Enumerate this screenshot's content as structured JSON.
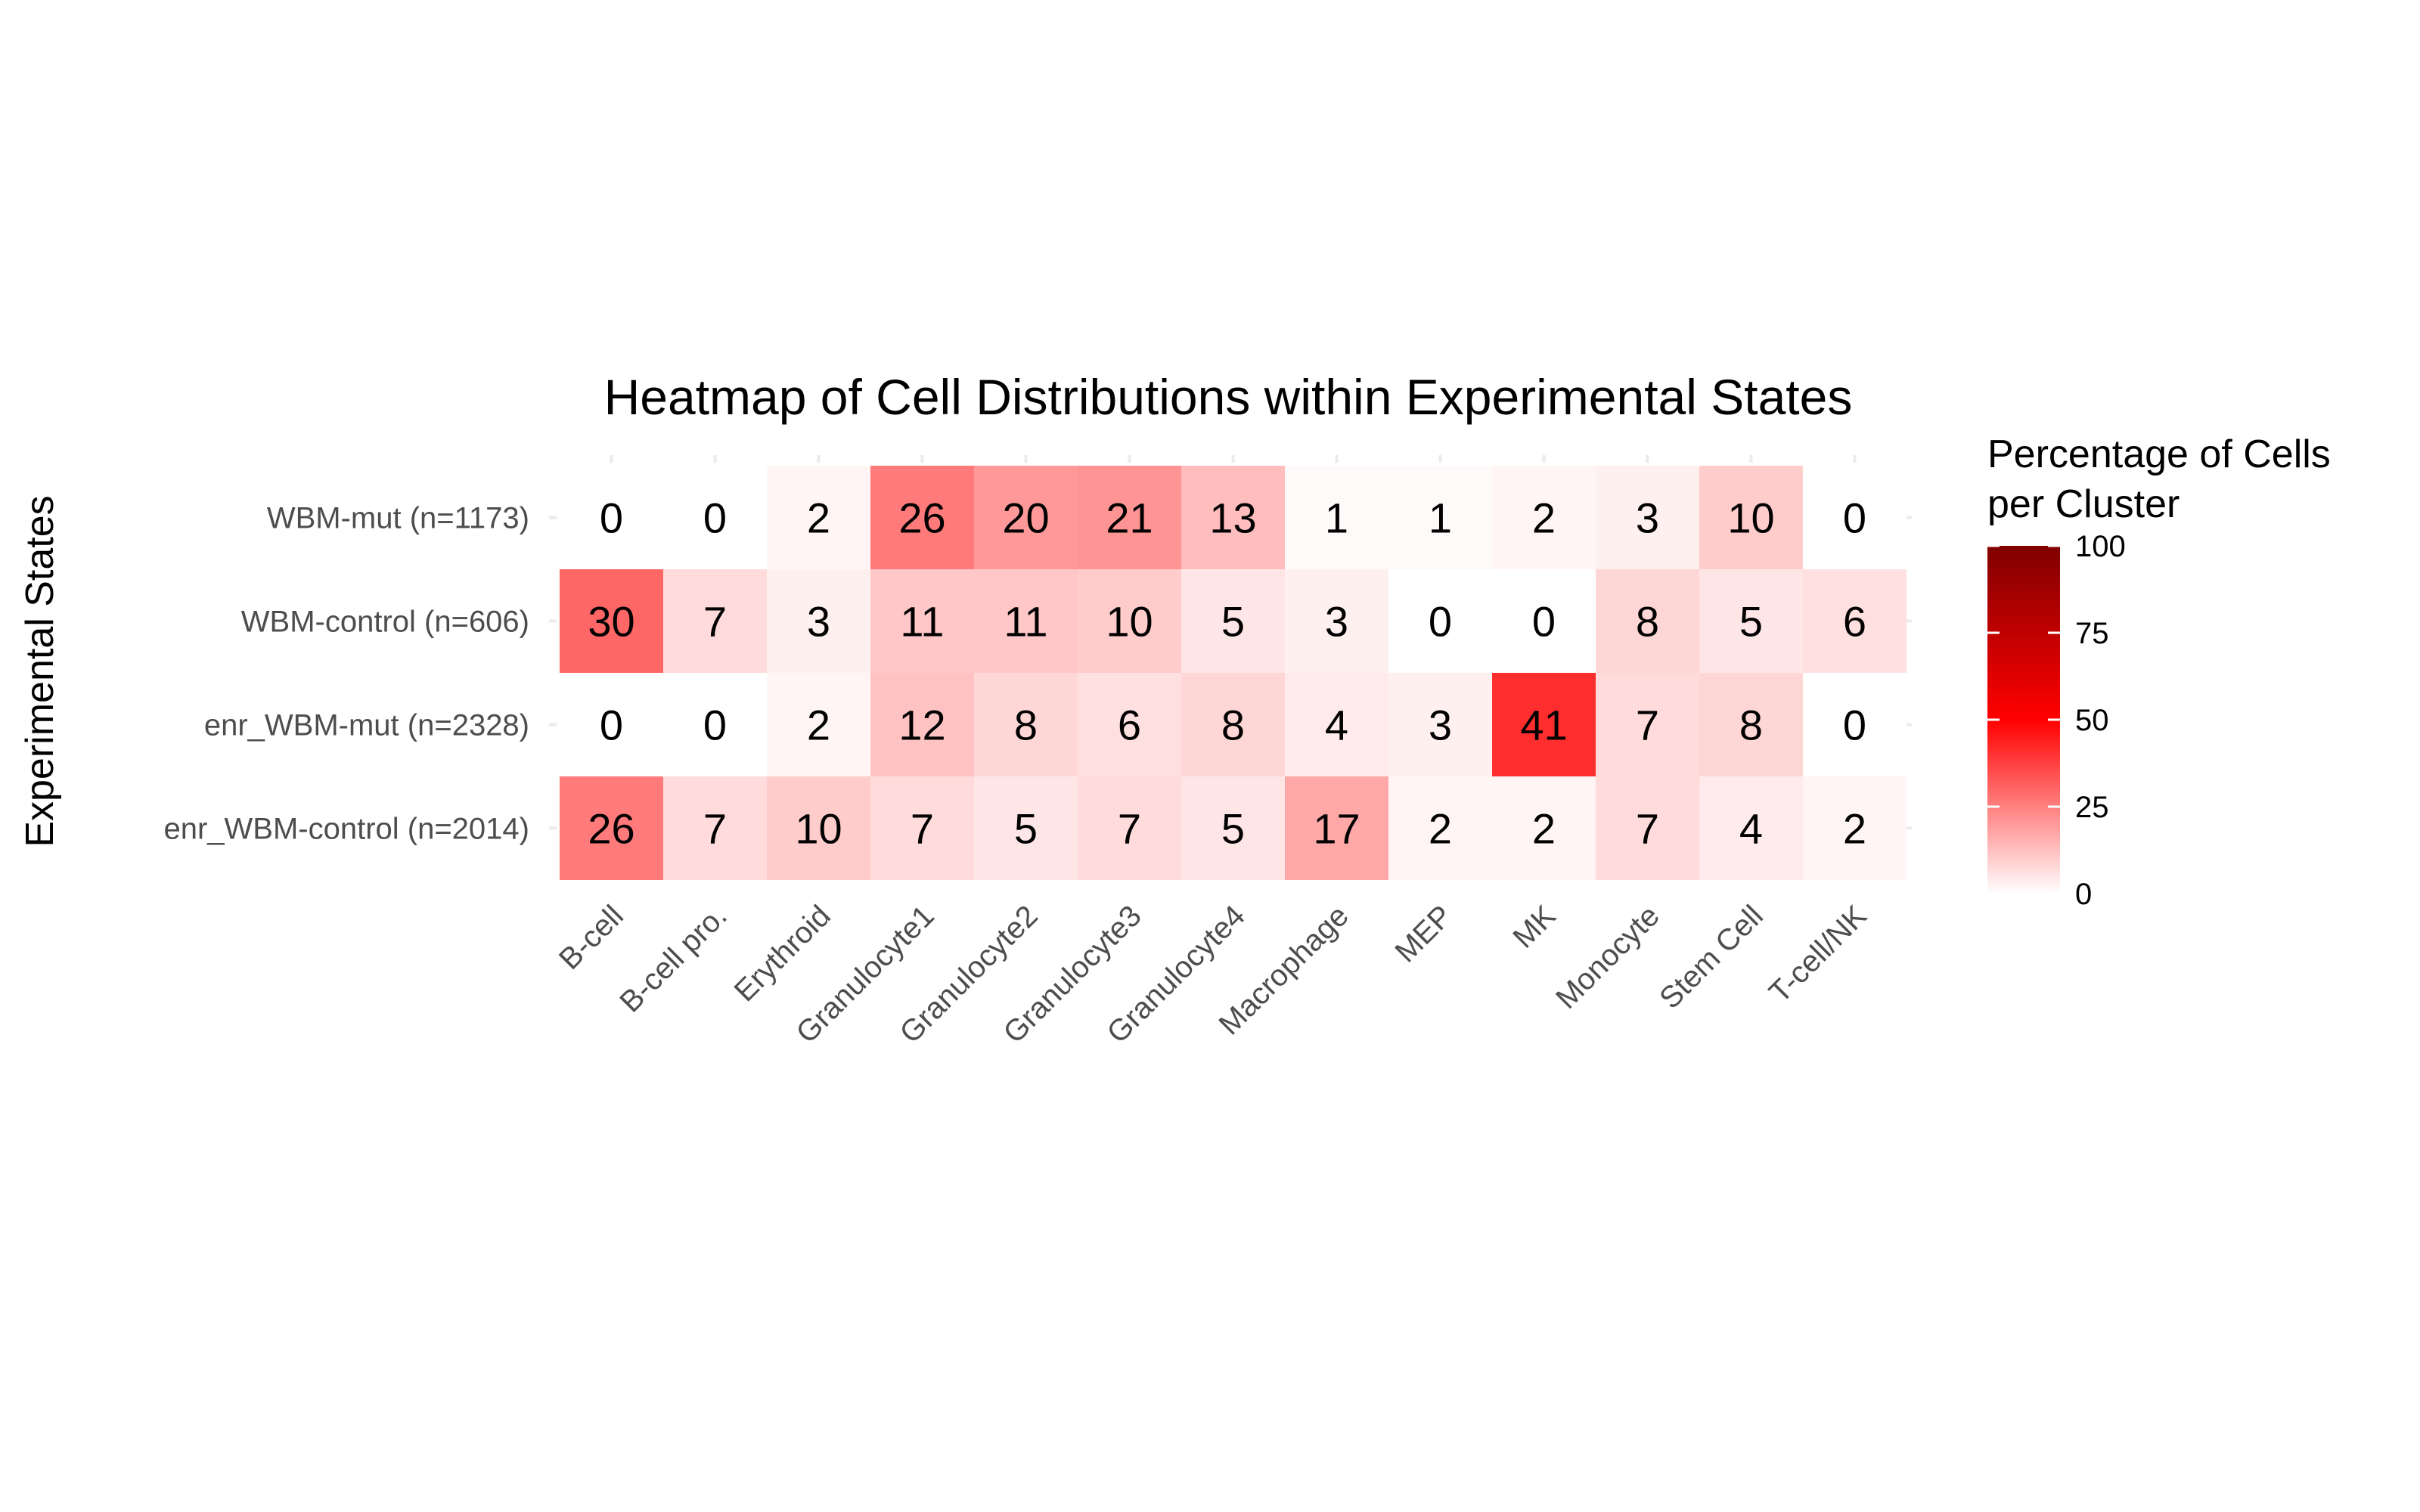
{
  "chart_data": {
    "type": "heatmap",
    "title": "Heatmap of Cell Distributions within Experimental States",
    "xlabel": "",
    "ylabel": "Experimental States",
    "x": [
      "B-cell",
      "B-cell pro.",
      "Erythroid",
      "Granulocyte1",
      "Granulocyte2",
      "Granulocyte3",
      "Granulocyte4",
      "Macrophage",
      "MEP",
      "MK",
      "Monocyte",
      "Stem Cell",
      "T-cell/NK"
    ],
    "y": [
      "WBM-mut (n=1173)",
      "WBM-control (n=606)",
      "enr_WBM-mut (n=2328)",
      "enr_WBM-control (n=2014)"
    ],
    "values": [
      [
        0,
        0,
        2,
        26,
        20,
        21,
        13,
        1,
        1,
        2,
        3,
        10,
        0
      ],
      [
        30,
        7,
        3,
        11,
        11,
        10,
        5,
        3,
        0,
        0,
        8,
        5,
        6
      ],
      [
        0,
        0,
        2,
        12,
        8,
        6,
        8,
        4,
        3,
        41,
        7,
        8,
        0
      ],
      [
        26,
        7,
        10,
        7,
        5,
        7,
        5,
        17,
        2,
        2,
        7,
        4,
        2
      ]
    ],
    "legend": {
      "title_line1": "Percentage of Cells",
      "title_line2": "per Cluster",
      "ticks": [
        0,
        25,
        50,
        75,
        100
      ],
      "range": [
        0,
        100
      ],
      "colors": [
        "#ffffff",
        "#ff0000",
        "#800000"
      ],
      "placement": "right"
    },
    "grid": true,
    "grid_color": "#ebebeb"
  }
}
